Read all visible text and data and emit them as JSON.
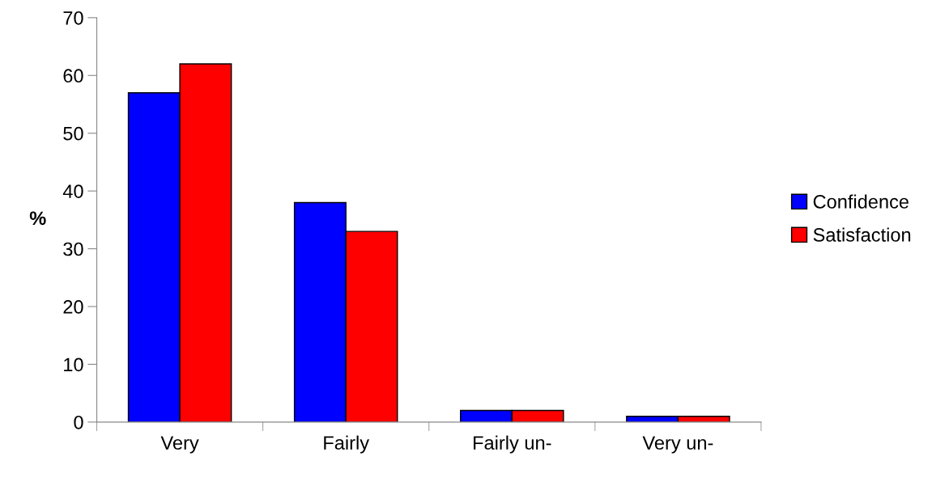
{
  "chart_data": {
    "type": "bar",
    "ylabel": "%",
    "categories": [
      "Very",
      "Fairly",
      "Fairly un-",
      "Very un-"
    ],
    "series": [
      {
        "name": "Confidence",
        "color": "#0000ff",
        "values": [
          57,
          38,
          2,
          1
        ]
      },
      {
        "name": "Satisfaction",
        "color": "#ff0000",
        "values": [
          62,
          33,
          2,
          1
        ]
      }
    ],
    "ylim": [
      0,
      70
    ],
    "yticks": [
      0,
      10,
      20,
      30,
      40,
      50,
      60,
      70
    ],
    "grid": false,
    "legend": "right"
  }
}
